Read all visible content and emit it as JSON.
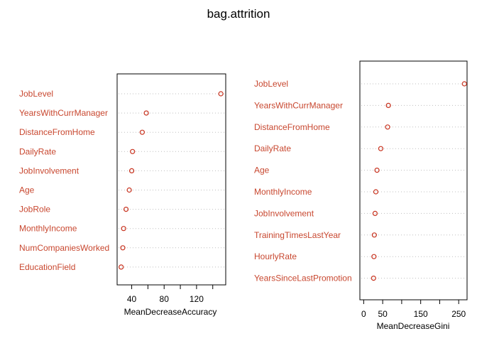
{
  "title": "bag.attrition",
  "colors": {
    "label": "#c8472f",
    "point": "#c8321e",
    "axis": "#000000",
    "guide": "#bfbfbf"
  },
  "chart_data": [
    {
      "type": "scatter",
      "xlabel": "MeanDecreaseAccuracy",
      "xlim": [
        22,
        156
      ],
      "ticks": [
        40,
        80,
        120
      ],
      "minor_ticks": [
        40,
        60,
        80,
        100,
        120,
        140
      ],
      "categories": [
        "JobLevel",
        "YearsWithCurrManager",
        "DistanceFromHome",
        "DailyRate",
        "JobInvolvement",
        "Age",
        "JobRole",
        "MonthlyIncome",
        "NumCompaniesWorked",
        "EducationField"
      ],
      "values": [
        150,
        58,
        53,
        41,
        40,
        37,
        33,
        30,
        29,
        27
      ],
      "grid": "dotted guides per row"
    },
    {
      "type": "scatter",
      "xlabel": "MeanDecreaseGini",
      "xlim": [
        -10,
        272
      ],
      "ticks": [
        0,
        50,
        150,
        250
      ],
      "minor_ticks": [
        0,
        50,
        100,
        150,
        200,
        250
      ],
      "categories": [
        "JobLevel",
        "YearsWithCurrManager",
        "DistanceFromHome",
        "DailyRate",
        "Age",
        "MonthlyIncome",
        "JobInvolvement",
        "TrainingTimesLastYear",
        "HourlyRate",
        "YearsSinceLastPromotion"
      ],
      "values": [
        265,
        65,
        63,
        45,
        35,
        32,
        30,
        28,
        27,
        26
      ],
      "grid": "dotted guides per row"
    }
  ]
}
